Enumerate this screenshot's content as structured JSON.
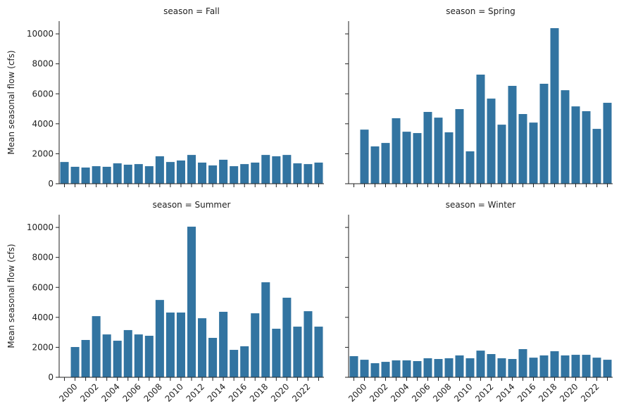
{
  "chart_data": [
    {
      "type": "bar",
      "title": "season = Fall",
      "ylabel": "Mean seasonal flow (cfs)",
      "color": "#3274a1",
      "values": [
        1450,
        1130,
        1080,
        1170,
        1130,
        1360,
        1270,
        1310,
        1170,
        1830,
        1450,
        1550,
        1920,
        1410,
        1220,
        1600,
        1170,
        1310,
        1410,
        1920,
        1830,
        1920,
        1360,
        1310,
        1410
      ],
      "ylim": [
        0,
        10850
      ],
      "yticks": [
        0,
        2000,
        4000,
        6000,
        8000,
        10000
      ]
    },
    {
      "type": "bar",
      "title": "season = Spring",
      "color": "#3274a1",
      "values": [
        null,
        3610,
        2490,
        2720,
        4370,
        3470,
        3380,
        4790,
        4410,
        3430,
        4980,
        2160,
        7280,
        5680,
        3940,
        6530,
        4650,
        4080,
        6670,
        10380,
        6240,
        5160,
        4840,
        3660,
        5400
      ],
      "ylim": [
        0,
        10850
      ]
    },
    {
      "type": "bar",
      "title": "season = Summer",
      "ylabel": "Mean seasonal flow (cfs)",
      "color": "#3274a1",
      "categories": [
        null,
        "2000",
        null,
        "2002",
        null,
        "2004",
        null,
        "2006",
        null,
        "2008",
        null,
        "2010",
        null,
        "2012",
        null,
        "2014",
        null,
        "2016",
        null,
        "2018",
        null,
        "2020",
        null,
        "2022",
        null
      ],
      "values": [
        null,
        2020,
        2490,
        4080,
        2860,
        2440,
        3150,
        2860,
        2770,
        5160,
        4320,
        4320,
        10050,
        3940,
        2630,
        4370,
        1830,
        2070,
        4270,
        6340,
        3240,
        5310,
        3380,
        4410,
        3380
      ],
      "ylim": [
        0,
        10850
      ],
      "yticks": [
        0,
        2000,
        4000,
        6000,
        8000,
        10000
      ]
    },
    {
      "type": "bar",
      "title": "season = Winter",
      "color": "#3274a1",
      "categories": [
        null,
        "2000",
        null,
        "2002",
        null,
        "2004",
        null,
        "2006",
        null,
        "2008",
        null,
        "2010",
        null,
        "2012",
        null,
        "2014",
        null,
        "2016",
        null,
        "2018",
        null,
        "2020",
        null,
        "2022",
        null
      ],
      "values": [
        1410,
        1170,
        940,
        1030,
        1130,
        1130,
        1080,
        1270,
        1220,
        1270,
        1460,
        1270,
        1780,
        1550,
        1270,
        1220,
        1880,
        1310,
        1460,
        1740,
        1460,
        1500,
        1500,
        1310,
        1170
      ],
      "ylim": [
        0,
        10850
      ]
    }
  ]
}
